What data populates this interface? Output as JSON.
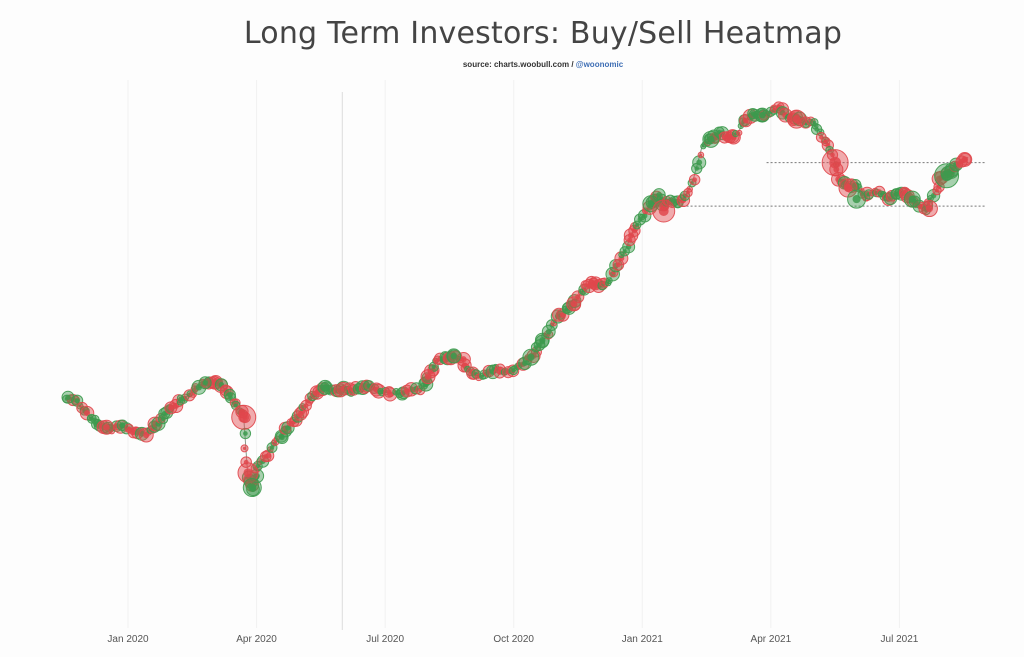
{
  "chart_data": {
    "type": "scatter",
    "title": "Long Term Investors: Buy/Sell Heatmap",
    "source_prefix": "source: charts.woobull.com / ",
    "source_handle": "@woonomic",
    "x_ticks": [
      {
        "label": "Jan 2020",
        "m": 2
      },
      {
        "label": "Apr 2020",
        "m": 5
      },
      {
        "label": "Jul 2020",
        "m": 8
      },
      {
        "label": "Oct 2020",
        "m": 11
      },
      {
        "label": "Jan 2021",
        "m": 14
      },
      {
        "label": "Apr 2021",
        "m": 17
      },
      {
        "label": "Jul 2021",
        "m": 20
      }
    ],
    "x_range_months": [
      0.6,
      21.8
    ],
    "y_range": [
      3200,
      67000
    ],
    "y_scale": "log",
    "vertical_marker_month": 7.0,
    "horizontal_levels": [
      {
        "price": 42000,
        "from_m": 16.9,
        "to_m": 22.0
      },
      {
        "price": 31500,
        "from_m": 14.1,
        "to_m": 22.0
      }
    ],
    "colors": {
      "buy": "#3d9a4e",
      "sell": "#e0474c",
      "line": "#8a9a8a"
    },
    "price_path": [
      [
        0.6,
        8900
      ],
      [
        0.8,
        8600
      ],
      [
        1.0,
        8100
      ],
      [
        1.2,
        7600
      ],
      [
        1.4,
        7300
      ],
      [
        1.6,
        7200
      ],
      [
        1.8,
        7400
      ],
      [
        2.0,
        7200
      ],
      [
        2.2,
        7100
      ],
      [
        2.4,
        7000
      ],
      [
        2.6,
        7300
      ],
      [
        2.8,
        7800
      ],
      [
        3.0,
        8300
      ],
      [
        3.2,
        8700
      ],
      [
        3.4,
        9000
      ],
      [
        3.6,
        9400
      ],
      [
        3.8,
        9800
      ],
      [
        4.0,
        9900
      ],
      [
        4.2,
        9600
      ],
      [
        4.4,
        8800
      ],
      [
        4.6,
        8200
      ],
      [
        4.7,
        7800
      ],
      [
        4.8,
        5200
      ],
      [
        4.9,
        4900
      ],
      [
        5.0,
        5500
      ],
      [
        5.2,
        6000
      ],
      [
        5.4,
        6500
      ],
      [
        5.6,
        6900
      ],
      [
        5.8,
        7500
      ],
      [
        6.0,
        7900
      ],
      [
        6.2,
        8700
      ],
      [
        6.4,
        9200
      ],
      [
        6.6,
        9500
      ],
      [
        6.8,
        9300
      ],
      [
        7.0,
        9400
      ],
      [
        7.2,
        9300
      ],
      [
        7.4,
        9500
      ],
      [
        7.6,
        9600
      ],
      [
        7.8,
        9400
      ],
      [
        8.0,
        9200
      ],
      [
        8.3,
        9100
      ],
      [
        8.6,
        9300
      ],
      [
        8.9,
        9500
      ],
      [
        9.0,
        10200
      ],
      [
        9.2,
        11200
      ],
      [
        9.4,
        11600
      ],
      [
        9.6,
        11700
      ],
      [
        9.8,
        11300
      ],
      [
        10.0,
        10500
      ],
      [
        10.2,
        10200
      ],
      [
        10.4,
        10400
      ],
      [
        10.6,
        10700
      ],
      [
        10.8,
        10500
      ],
      [
        11.0,
        10700
      ],
      [
        11.2,
        11100
      ],
      [
        11.4,
        11600
      ],
      [
        11.6,
        12600
      ],
      [
        11.8,
        13500
      ],
      [
        12.0,
        15000
      ],
      [
        12.2,
        15700
      ],
      [
        12.4,
        16500
      ],
      [
        12.6,
        18000
      ],
      [
        12.8,
        19000
      ],
      [
        13.0,
        18500
      ],
      [
        13.2,
        19000
      ],
      [
        13.4,
        21000
      ],
      [
        13.6,
        23500
      ],
      [
        13.8,
        27000
      ],
      [
        14.0,
        29000
      ],
      [
        14.2,
        32000
      ],
      [
        14.4,
        34000
      ],
      [
        14.5,
        31000
      ],
      [
        14.6,
        33000
      ],
      [
        14.8,
        32000
      ],
      [
        15.0,
        33500
      ],
      [
        15.2,
        38000
      ],
      [
        15.4,
        47000
      ],
      [
        15.6,
        49000
      ],
      [
        15.8,
        51000
      ],
      [
        16.0,
        49000
      ],
      [
        16.2,
        50500
      ],
      [
        16.4,
        55500
      ],
      [
        16.6,
        58000
      ],
      [
        16.8,
        57500
      ],
      [
        17.0,
        58500
      ],
      [
        17.2,
        60500
      ],
      [
        17.4,
        57000
      ],
      [
        17.6,
        56000
      ],
      [
        17.8,
        54500
      ],
      [
        18.0,
        55000
      ],
      [
        18.2,
        50000
      ],
      [
        18.4,
        46000
      ],
      [
        18.6,
        38000
      ],
      [
        18.8,
        35500
      ],
      [
        19.0,
        36000
      ],
      [
        19.2,
        33500
      ],
      [
        19.4,
        35000
      ],
      [
        19.6,
        34000
      ],
      [
        19.8,
        33000
      ],
      [
        20.0,
        35000
      ],
      [
        20.2,
        33500
      ],
      [
        20.4,
        32000
      ],
      [
        20.6,
        31000
      ],
      [
        20.8,
        34000
      ],
      [
        21.0,
        38500
      ],
      [
        21.2,
        39500
      ],
      [
        21.4,
        41500
      ],
      [
        21.6,
        43500
      ]
    ],
    "highlight_bubbles": [
      {
        "m": 0.6,
        "price": 8900,
        "r": 6,
        "kind": "buy"
      },
      {
        "m": 1.5,
        "price": 7300,
        "r": 7,
        "kind": "sell"
      },
      {
        "m": 3.0,
        "price": 8300,
        "r": 6,
        "kind": "sell"
      },
      {
        "m": 3.8,
        "price": 9800,
        "r": 6,
        "kind": "buy"
      },
      {
        "m": 4.7,
        "price": 7800,
        "r": 12,
        "kind": "sell"
      },
      {
        "m": 4.8,
        "price": 5400,
        "r": 10,
        "kind": "sell"
      },
      {
        "m": 4.9,
        "price": 4900,
        "r": 9,
        "kind": "buy"
      },
      {
        "m": 6.6,
        "price": 9500,
        "r": 7,
        "kind": "buy"
      },
      {
        "m": 9.0,
        "price": 10200,
        "r": 7,
        "kind": "sell"
      },
      {
        "m": 9.6,
        "price": 11700,
        "r": 7,
        "kind": "buy"
      },
      {
        "m": 11.4,
        "price": 11600,
        "r": 8,
        "kind": "buy"
      },
      {
        "m": 12.4,
        "price": 16500,
        "r": 7,
        "kind": "sell"
      },
      {
        "m": 14.2,
        "price": 32000,
        "r": 8,
        "kind": "buy"
      },
      {
        "m": 14.5,
        "price": 30500,
        "r": 11,
        "kind": "sell"
      },
      {
        "m": 15.6,
        "price": 49000,
        "r": 8,
        "kind": "buy"
      },
      {
        "m": 16.8,
        "price": 57500,
        "r": 7,
        "kind": "buy"
      },
      {
        "m": 17.6,
        "price": 56000,
        "r": 9,
        "kind": "sell"
      },
      {
        "m": 18.5,
        "price": 42000,
        "r": 13,
        "kind": "sell"
      },
      {
        "m": 18.8,
        "price": 35500,
        "r": 9,
        "kind": "sell"
      },
      {
        "m": 19.0,
        "price": 33000,
        "r": 9,
        "kind": "buy"
      },
      {
        "m": 20.3,
        "price": 33000,
        "r": 8,
        "kind": "buy"
      },
      {
        "m": 20.7,
        "price": 31000,
        "r": 8,
        "kind": "sell"
      },
      {
        "m": 21.1,
        "price": 38500,
        "r": 12,
        "kind": "buy"
      }
    ]
  }
}
